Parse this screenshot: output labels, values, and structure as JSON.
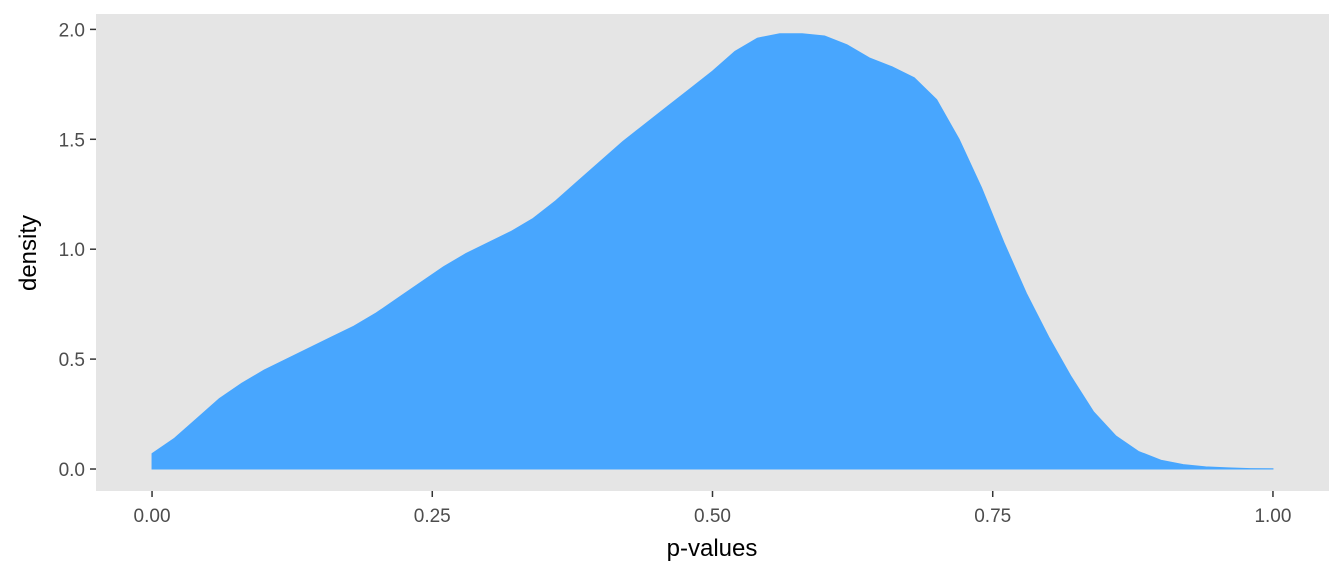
{
  "colors": {
    "panel_background": "#e5e5e5",
    "fill": "#48a6fe",
    "tick": "#333333"
  },
  "chart_data": {
    "type": "area",
    "title": "",
    "xlabel": "p-values",
    "ylabel": "density",
    "xlim": [
      -0.05,
      1.05
    ],
    "ylim": [
      -0.1,
      2.07
    ],
    "grid": false,
    "x_ticks": [
      0.0,
      0.25,
      0.5,
      0.75,
      1.0
    ],
    "x_tick_labels": [
      "0.00",
      "0.25",
      "0.50",
      "0.75",
      "1.00"
    ],
    "y_ticks": [
      0.0,
      0.5,
      1.0,
      1.5,
      2.0
    ],
    "y_tick_labels": [
      "0.0",
      "0.5",
      "1.0",
      "1.5",
      "2.0"
    ],
    "series": [
      {
        "x": [
          0.0,
          0.02,
          0.04,
          0.06,
          0.08,
          0.1,
          0.12,
          0.14,
          0.16,
          0.18,
          0.2,
          0.22,
          0.24,
          0.26,
          0.28,
          0.3,
          0.32,
          0.34,
          0.36,
          0.38,
          0.4,
          0.42,
          0.44,
          0.46,
          0.48,
          0.5,
          0.52,
          0.54,
          0.56,
          0.58,
          0.6,
          0.62,
          0.64,
          0.66,
          0.68,
          0.7,
          0.72,
          0.74,
          0.76,
          0.78,
          0.8,
          0.82,
          0.84,
          0.86,
          0.88,
          0.9,
          0.92,
          0.94,
          0.96,
          0.98,
          1.0
        ],
        "y": [
          0.07,
          0.14,
          0.23,
          0.32,
          0.39,
          0.45,
          0.5,
          0.55,
          0.6,
          0.65,
          0.71,
          0.78,
          0.85,
          0.92,
          0.98,
          1.03,
          1.08,
          1.14,
          1.22,
          1.31,
          1.4,
          1.49,
          1.57,
          1.65,
          1.73,
          1.81,
          1.9,
          1.96,
          1.98,
          1.98,
          1.97,
          1.93,
          1.87,
          1.83,
          1.78,
          1.68,
          1.5,
          1.28,
          1.03,
          0.8,
          0.6,
          0.42,
          0.26,
          0.15,
          0.08,
          0.04,
          0.02,
          0.01,
          0.005,
          0.002,
          0.001
        ]
      }
    ]
  }
}
